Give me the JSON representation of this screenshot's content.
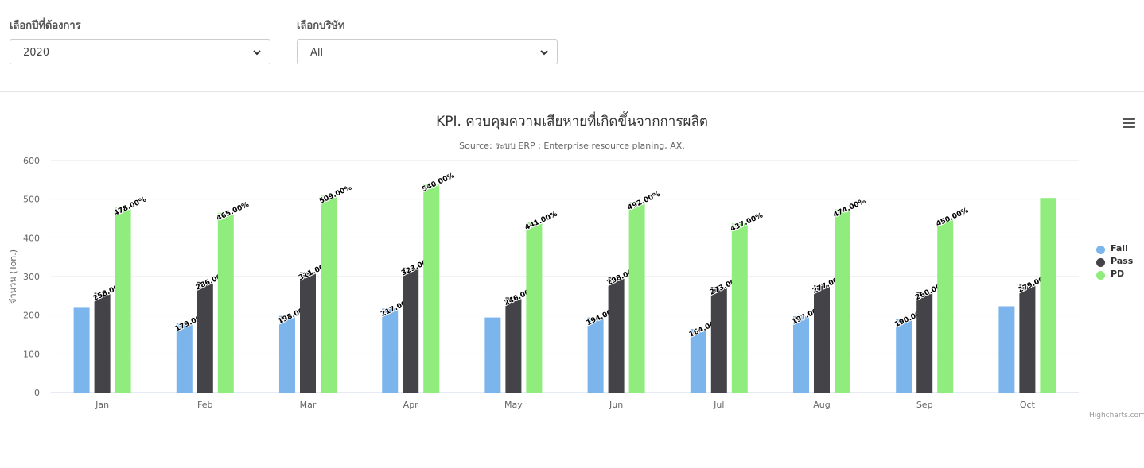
{
  "filters": {
    "year_label": "เลือกปีที่ต้องการ",
    "year_value": "2020",
    "company_label": "เลือกบริษัท",
    "company_value": "All"
  },
  "credits": "Highcharts.com",
  "colors": {
    "fail": "#7cb5ec",
    "pass": "#434348",
    "pd": "#90ed7d"
  },
  "chart_data": {
    "type": "bar",
    "title": "KPI. ควบคุมความเสียหายที่เกิดขึ้นจากการผลิต",
    "subtitle": "Source: ระบบ ERP : Enterprise resource planing, AX.",
    "xlabel": "",
    "ylabel": "จำนวน (Ton.)",
    "ylim": [
      0,
      600
    ],
    "yticks": [
      0,
      100,
      200,
      300,
      400,
      500,
      600
    ],
    "grid": true,
    "legend_position": "right",
    "categories": [
      "Jan",
      "Feb",
      "Mar",
      "Apr",
      "May",
      "Jun",
      "Jul",
      "Aug",
      "Sep",
      "Oct"
    ],
    "series": [
      {
        "name": "Fail",
        "color": "#7cb5ec",
        "values": [
          219,
          179,
          198,
          217,
          194,
          194,
          164,
          197,
          190,
          223
        ],
        "labels": [
          "",
          "179.00%",
          "198.00%",
          "217.00%",
          "",
          "194.00%",
          "164.00%",
          "197.00%",
          "190.00%",
          ""
        ]
      },
      {
        "name": "Pass",
        "color": "#434348",
        "values": [
          258,
          286,
          311,
          323,
          246,
          298,
          273,
          277,
          260,
          279
        ],
        "labels": [
          "258.00%",
          "286.00%",
          "311.00%",
          "323.00%",
          "246.00%",
          "298.00%",
          "273.00%",
          "277.00%",
          "260.00%",
          "279.00%"
        ]
      },
      {
        "name": "PD",
        "color": "#90ed7d",
        "values": [
          478,
          465,
          509,
          540,
          441,
          492,
          437,
          474,
          450,
          503
        ],
        "labels": [
          "478.00%",
          "465.00%",
          "509.00%",
          "540.00%",
          "441.00%",
          "492.00%",
          "437.00%",
          "474.00%",
          "450.00%",
          ""
        ]
      }
    ]
  }
}
